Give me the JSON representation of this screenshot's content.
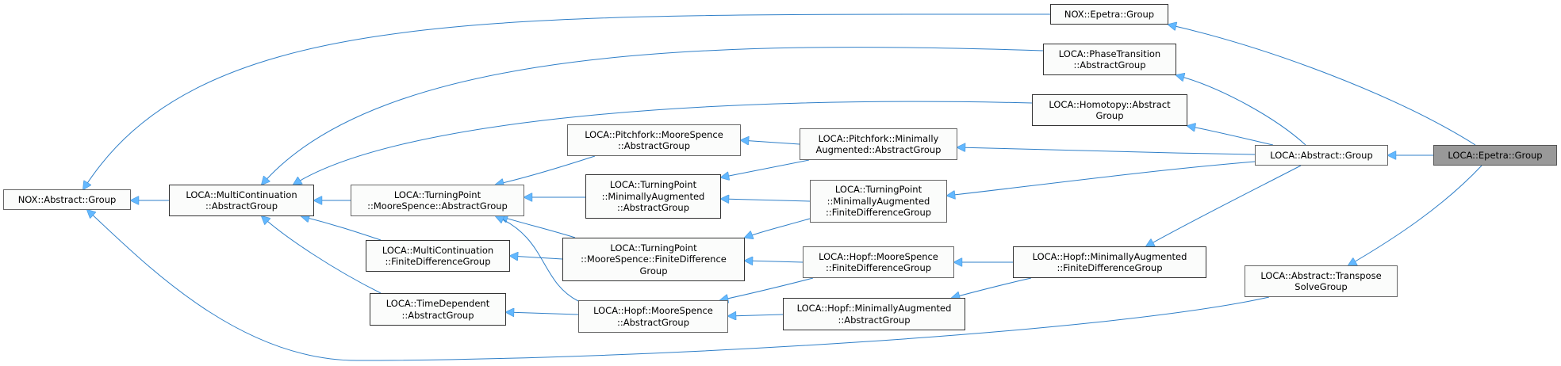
{
  "diagram": {
    "nodes": [
      {
        "id": "nox_abstract_group",
        "label": "NOX::Abstract::Group"
      },
      {
        "id": "mc_abstract_group",
        "label": "LOCA::MultiContinuation\n::AbstractGroup"
      },
      {
        "id": "tp_ms_abstract_group",
        "label": "LOCA::TurningPoint\n::MooreSpence::AbstractGroup"
      },
      {
        "id": "mc_fd_group",
        "label": "LOCA::MultiContinuation\n::FiniteDifferenceGroup"
      },
      {
        "id": "td_abstract_group",
        "label": "LOCA::TimeDependent\n::AbstractGroup"
      },
      {
        "id": "pf_ms_abstract_group",
        "label": "LOCA::Pitchfork::MooreSpence\n::AbstractGroup"
      },
      {
        "id": "pf_ma_abstract_group",
        "label": "LOCA::Pitchfork::Minimally\nAugmented::AbstractGroup"
      },
      {
        "id": "tp_ma_abstract_group",
        "label": "LOCA::TurningPoint\n::MinimallyAugmented\n::AbstractGroup"
      },
      {
        "id": "tp_ma_fd_group",
        "label": "LOCA::TurningPoint\n::MinimallyAugmented\n::FiniteDifferenceGroup"
      },
      {
        "id": "tp_ms_fd_group",
        "label": "LOCA::TurningPoint\n::MooreSpence::FiniteDifference\nGroup"
      },
      {
        "id": "hopf_ms_fd_group",
        "label": "LOCA::Hopf::MooreSpence\n::FiniteDifferenceGroup"
      },
      {
        "id": "hopf_ms_abstract_group",
        "label": "LOCA::Hopf::MooreSpence\n::AbstractGroup"
      },
      {
        "id": "hopf_ma_abstract_group",
        "label": "LOCA::Hopf::MinimallyAugmented\n::AbstractGroup"
      },
      {
        "id": "hopf_ma_fd_group",
        "label": "LOCA::Hopf::MinimallyAugmented\n::FiniteDifferenceGroup"
      },
      {
        "id": "nox_epetra_group",
        "label": "NOX::Epetra::Group"
      },
      {
        "id": "pt_abstract_group",
        "label": "LOCA::PhaseTransition\n::AbstractGroup"
      },
      {
        "id": "homotopy_abstract_group",
        "label": "LOCA::Homotopy::Abstract\nGroup"
      },
      {
        "id": "loca_abstract_group",
        "label": "LOCA::Abstract::Group"
      },
      {
        "id": "transpose_solve_group",
        "label": "LOCA::Abstract::Transpose\nSolveGroup"
      },
      {
        "id": "loca_epetra_group",
        "label": "LOCA::Epetra::Group",
        "current": true
      }
    ],
    "edges": [
      [
        "loca_epetra_group",
        "loca_abstract_group"
      ],
      [
        "loca_epetra_group",
        "nox_epetra_group"
      ],
      [
        "loca_epetra_group",
        "transpose_solve_group"
      ],
      [
        "loca_abstract_group",
        "pt_abstract_group"
      ],
      [
        "loca_abstract_group",
        "homotopy_abstract_group"
      ],
      [
        "loca_abstract_group",
        "pf_ma_abstract_group"
      ],
      [
        "loca_abstract_group",
        "tp_ma_fd_group"
      ],
      [
        "loca_abstract_group",
        "hopf_ma_fd_group"
      ],
      [
        "nox_epetra_group",
        "nox_abstract_group"
      ],
      [
        "pt_abstract_group",
        "mc_abstract_group"
      ],
      [
        "homotopy_abstract_group",
        "mc_abstract_group"
      ],
      [
        "transpose_solve_group",
        "nox_abstract_group"
      ],
      [
        "mc_abstract_group",
        "nox_abstract_group"
      ],
      [
        "tp_ms_abstract_group",
        "mc_abstract_group"
      ],
      [
        "mc_fd_group",
        "mc_abstract_group"
      ],
      [
        "td_abstract_group",
        "mc_abstract_group"
      ],
      [
        "pf_ms_abstract_group",
        "tp_ms_abstract_group"
      ],
      [
        "pf_ma_abstract_group",
        "pf_ms_abstract_group"
      ],
      [
        "pf_ma_abstract_group",
        "tp_ma_abstract_group"
      ],
      [
        "tp_ma_abstract_group",
        "tp_ms_abstract_group"
      ],
      [
        "tp_ma_fd_group",
        "tp_ma_abstract_group"
      ],
      [
        "tp_ma_fd_group",
        "tp_ms_fd_group"
      ],
      [
        "tp_ms_fd_group",
        "mc_fd_group"
      ],
      [
        "tp_ms_fd_group",
        "tp_ms_abstract_group"
      ],
      [
        "hopf_ms_fd_group",
        "tp_ms_fd_group"
      ],
      [
        "hopf_ms_fd_group",
        "hopf_ms_abstract_group"
      ],
      [
        "hopf_ms_abstract_group",
        "td_abstract_group"
      ],
      [
        "hopf_ms_abstract_group",
        "tp_ms_abstract_group"
      ],
      [
        "hopf_ma_abstract_group",
        "hopf_ms_abstract_group"
      ],
      [
        "hopf_ma_fd_group",
        "hopf_ms_fd_group"
      ],
      [
        "hopf_ma_fd_group",
        "hopf_ma_abstract_group"
      ]
    ],
    "colors": {
      "edge": "#2f7fc8",
      "arrowhead": "#63b8ff",
      "node_fill": "#fbfcfb",
      "current_fill": "#999999",
      "border": "#666666"
    }
  }
}
